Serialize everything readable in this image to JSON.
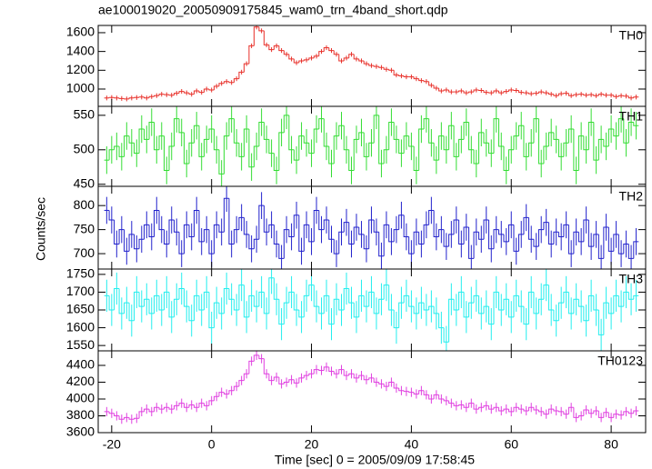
{
  "title": "ae100019020_20050909175845_wam0_trn_4band_short.qdp",
  "xlabel": "Time [sec] 0 = 2005/09/09 17:58:45",
  "ylabel": "Counts/sec",
  "xlim": [
    -22.7,
    86.9
  ],
  "xticks": [
    -20,
    0,
    20,
    40,
    60,
    80
  ],
  "x": [
    -21,
    -20,
    -19,
    -18,
    -17,
    -16,
    -15,
    -14,
    -13,
    -12,
    -11,
    -10,
    -9,
    -8,
    -7,
    -6,
    -5,
    -4,
    -3,
    -2,
    -1,
    0,
    1,
    2,
    3,
    4,
    5,
    6,
    7,
    8,
    9,
    10,
    11,
    12,
    13,
    14,
    15,
    16,
    17,
    18,
    19,
    20,
    21,
    22,
    23,
    24,
    25,
    26,
    27,
    28,
    29,
    30,
    31,
    32,
    33,
    34,
    35,
    36,
    37,
    38,
    39,
    40,
    41,
    42,
    43,
    44,
    45,
    46,
    47,
    48,
    49,
    50,
    51,
    52,
    53,
    54,
    55,
    56,
    57,
    58,
    59,
    60,
    61,
    62,
    63,
    64,
    65,
    66,
    67,
    68,
    69,
    70,
    71,
    72,
    73,
    74,
    75,
    76,
    77,
    78,
    79,
    80,
    81,
    82,
    83,
    84,
    85
  ],
  "chart_data": [
    {
      "type": "line",
      "name": "TH0",
      "color": "#e8302a",
      "error": 25,
      "ylim": [
        816,
        1677
      ],
      "yticks": [
        1000,
        1200,
        1400,
        1600
      ],
      "values": [
        905,
        910,
        905,
        900,
        895,
        905,
        910,
        915,
        905,
        920,
        930,
        945,
        940,
        935,
        955,
        975,
        960,
        945,
        980,
        965,
        1000,
        990,
        1030,
        1060,
        1080,
        1070,
        1110,
        1180,
        1270,
        1460,
        1660,
        1620,
        1470,
        1420,
        1460,
        1410,
        1370,
        1320,
        1280,
        1300,
        1310,
        1330,
        1350,
        1400,
        1440,
        1410,
        1370,
        1300,
        1330,
        1370,
        1320,
        1300,
        1270,
        1250,
        1240,
        1230,
        1210,
        1200,
        1150,
        1140,
        1130,
        1130,
        1110,
        1090,
        1080,
        1040,
        1010,
        980,
        990,
        970,
        970,
        980,
        960,
        970,
        990,
        985,
        965,
        960,
        980,
        960,
        975,
        990,
        985,
        965,
        960,
        950,
        955,
        970,
        960,
        945,
        930,
        950,
        955,
        930,
        940,
        945,
        935,
        940,
        930,
        945,
        935,
        935,
        920,
        930,
        925,
        905,
        915
      ]
    },
    {
      "type": "line",
      "name": "TH1",
      "color": "#33dd33",
      "error": 20,
      "ylim": [
        447,
        563
      ],
      "yticks": [
        450,
        500,
        550
      ],
      "values": [
        485,
        500,
        505,
        490,
        520,
        510,
        495,
        530,
        515,
        540,
        500,
        520,
        470,
        505,
        545,
        525,
        480,
        510,
        535,
        490,
        515,
        530,
        500,
        465,
        520,
        545,
        510,
        490,
        530,
        475,
        505,
        540,
        515,
        495,
        470,
        525,
        550,
        500,
        485,
        520,
        510,
        495,
        530,
        545,
        505,
        480,
        520,
        535,
        500,
        470,
        515,
        525,
        490,
        510,
        550,
        480,
        500,
        540,
        515,
        495,
        520,
        505,
        470,
        530,
        545,
        510,
        485,
        520,
        500,
        535,
        490,
        515,
        540,
        500,
        480,
        525,
        510,
        495,
        545,
        505,
        470,
        500,
        520,
        535,
        490,
        510,
        545,
        480,
        505,
        525,
        515,
        490,
        510,
        530,
        470,
        520,
        500,
        540,
        485,
        515,
        505,
        530,
        520,
        545,
        510,
        540,
        535
      ]
    },
    {
      "type": "line",
      "name": "TH2",
      "color": "#2222cc",
      "error": 28,
      "ylim": [
        668,
        840
      ],
      "yticks": [
        700,
        750,
        800
      ],
      "values": [
        790,
        770,
        720,
        750,
        705,
        740,
        710,
        730,
        760,
        735,
        790,
        750,
        720,
        770,
        745,
        700,
        760,
        735,
        790,
        725,
        750,
        700,
        760,
        745,
        815,
        720,
        750,
        775,
        740,
        710,
        730,
        800,
        745,
        760,
        720,
        690,
        750,
        735,
        780,
        705,
        760,
        725,
        790,
        750,
        770,
        730,
        700,
        745,
        765,
        720,
        755,
        740,
        710,
        770,
        745,
        695,
        760,
        725,
        750,
        780,
        735,
        700,
        745,
        720,
        760,
        790,
        735,
        750,
        715,
        740,
        770,
        720,
        755,
        690,
        745,
        730,
        770,
        710,
        750,
        740,
        725,
        760,
        705,
        740,
        775,
        730,
        715,
        750,
        765,
        720,
        745,
        735,
        760,
        700,
        745,
        725,
        770,
        715,
        740,
        690,
        755,
        705,
        740,
        700,
        720,
        690,
        725
      ]
    },
    {
      "type": "line",
      "name": "TH3",
      "color": "#22eeee",
      "error": 45,
      "ylim": [
        1535,
        1765
      ],
      "yticks": [
        1550,
        1600,
        1650,
        1700,
        1750
      ],
      "values": [
        1690,
        1650,
        1710,
        1640,
        1670,
        1620,
        1700,
        1660,
        1680,
        1640,
        1690,
        1650,
        1700,
        1630,
        1680,
        1710,
        1660,
        1620,
        1690,
        1650,
        1700,
        1600,
        1670,
        1640,
        1710,
        1680,
        1650,
        1720,
        1630,
        1690,
        1660,
        1700,
        1640,
        1740,
        1680,
        1610,
        1670,
        1700,
        1650,
        1630,
        1690,
        1720,
        1660,
        1640,
        1690,
        1610,
        1680,
        1650,
        1710,
        1670,
        1630,
        1690,
        1660,
        1700,
        1640,
        1680,
        1720,
        1650,
        1600,
        1670,
        1690,
        1660,
        1640,
        1670,
        1650,
        1660,
        1640,
        1600,
        1560,
        1680,
        1650,
        1700,
        1630,
        1670,
        1690,
        1640,
        1660,
        1610,
        1700,
        1650,
        1680,
        1630,
        1690,
        1660,
        1610,
        1700,
        1640,
        1680,
        1720,
        1650,
        1620,
        1670,
        1700,
        1640,
        1680,
        1660,
        1620,
        1690,
        1650,
        1580,
        1670,
        1640,
        1690,
        1660,
        1700,
        1680,
        1690
      ]
    },
    {
      "type": "line",
      "name": "TH0123",
      "color": "#e040e0",
      "error": 55,
      "ylim": [
        3600,
        4573
      ],
      "yticks": [
        3600,
        3800,
        4000,
        4200,
        4400
      ],
      "values": [
        3850,
        3830,
        3800,
        3760,
        3780,
        3760,
        3770,
        3850,
        3880,
        3850,
        3900,
        3880,
        3900,
        3880,
        3920,
        3950,
        3900,
        3930,
        3900,
        3950,
        3920,
        3980,
        4030,
        4080,
        4060,
        4100,
        4150,
        4220,
        4300,
        4450,
        4520,
        4480,
        4300,
        4220,
        4260,
        4180,
        4200,
        4230,
        4190,
        4250,
        4280,
        4300,
        4350,
        4340,
        4380,
        4330,
        4300,
        4350,
        4280,
        4300,
        4250,
        4280,
        4230,
        4250,
        4200,
        4180,
        4150,
        4200,
        4130,
        4100,
        4090,
        4080,
        4060,
        4100,
        4050,
        4000,
        4050,
        4000,
        3980,
        3950,
        3920,
        3930,
        3900,
        3950,
        3880,
        3900,
        3920,
        3880,
        3900,
        3860,
        3880,
        3850,
        3900,
        3880,
        3860,
        3900,
        3870,
        3850,
        3820,
        3880,
        3860,
        3850,
        3820,
        3900,
        3780,
        3800,
        3870,
        3830,
        3860,
        3780,
        3840,
        3780,
        3820,
        3810,
        3850,
        3830,
        3860
      ]
    }
  ]
}
